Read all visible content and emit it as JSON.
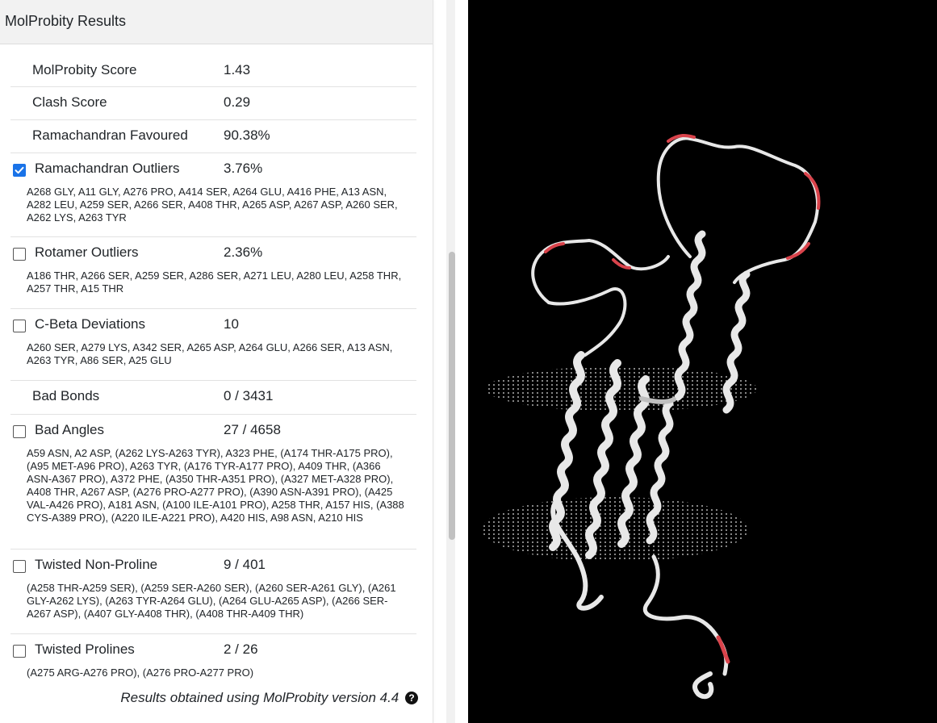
{
  "panel": {
    "title": "MolProbity Results",
    "rows": [
      {
        "label": "MolProbity Score",
        "value": "1.43"
      },
      {
        "label": "Clash Score",
        "value": "0.29"
      },
      {
        "label": "Ramachandran Favoured",
        "value": "90.38%"
      },
      {
        "label": "Ramachandran Outliers",
        "value": "3.76%",
        "checked": true,
        "details": "A268 GLY, A11 GLY, A276 PRO, A414 SER, A264 GLU, A416 PHE, A13 ASN, A282 LEU, A259 SER, A266 SER, A408 THR, A265 ASP, A267 ASP, A260 SER, A262 LYS, A263 TYR"
      },
      {
        "label": "Rotamer Outliers",
        "value": "2.36%",
        "checked": false,
        "details": "A186 THR, A266 SER, A259 SER, A286 SER, A271 LEU, A280 LEU, A258 THR, A257 THR, A15 THR"
      },
      {
        "label": "C-Beta Deviations",
        "value": "10",
        "checked": false,
        "details": "A260 SER, A279 LYS, A342 SER, A265 ASP, A264 GLU, A266 SER, A13 ASN, A263 TYR, A86 SER, A25 GLU"
      },
      {
        "label": "Bad Bonds",
        "value": "0 / 3431"
      },
      {
        "label": "Bad Angles",
        "value": "27 / 4658",
        "checked": false,
        "details": "A59 ASN, A2 ASP, (A262 LYS-A263 TYR), A323 PHE, (A174 THR-A175 PRO), (A95 MET-A96 PRO), A263 TYR, (A176 TYR-A177 PRO), A409 THR, (A366 ASN-A367 PRO), A372 PHE, (A350 THR-A351 PRO), (A327 MET-A328 PRO), A408 THR, A267 ASP, (A276 PRO-A277 PRO), (A390 ASN-A391 PRO), (A425 VAL-A426 PRO), A181 ASN, (A100 ILE-A101 PRO), A258 THR, A157 HIS, (A388 CYS-A389 PRO), (A220 ILE-A221 PRO), A420 HIS, A98 ASN, A210 HIS"
      },
      {
        "label": "Twisted Non-Proline",
        "value": "9 / 401",
        "checked": false,
        "details": "(A258 THR-A259 SER), (A259 SER-A260 SER), (A260 SER-A261 GLY), (A261 GLY-A262 LYS), (A263 TYR-A264 GLU), (A264 GLU-A265 ASP), (A266 SER-A267 ASP), (A407 GLY-A408 THR), (A408 THR-A409 THR)"
      },
      {
        "label": "Twisted Prolines",
        "value": "2 / 26",
        "checked": false,
        "details": "(A275 ARG-A276 PRO), (A276 PRO-A277 PRO)"
      }
    ],
    "footer": "Results obtained using MolProbity version 4.4",
    "help_icon": "question-circle-icon"
  },
  "colors": {
    "header_bg": "#f2f2f2",
    "checkbox_checked": "#1a73e8",
    "viewer_bg": "#000000",
    "outlier_highlight": "#d9434b"
  }
}
